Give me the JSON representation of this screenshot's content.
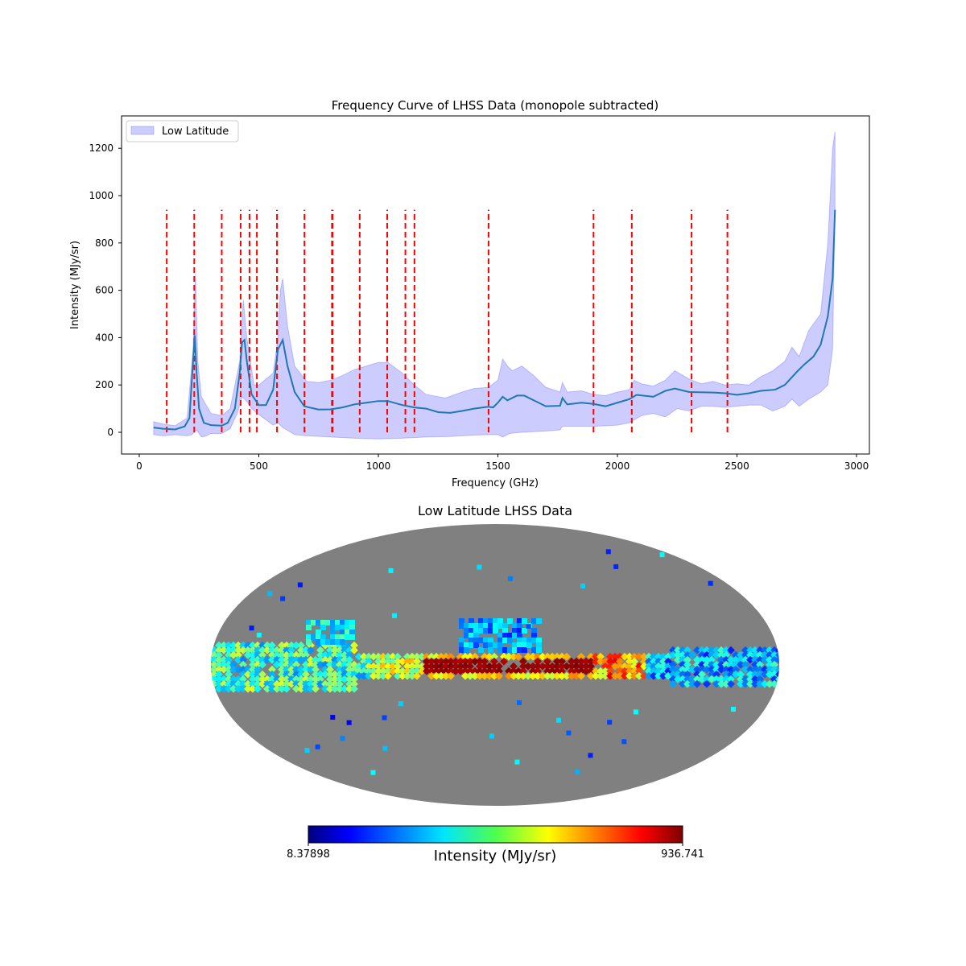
{
  "chart_data": [
    {
      "type": "line",
      "title": "Frequency Curve of LHSS Data (monopole subtracted)",
      "xlabel": "Frequency (GHz)",
      "ylabel": "Intensity (MJy/sr)",
      "xlim": [
        -80,
        3050
      ],
      "ylim": [
        -90,
        1330
      ],
      "xticks": [
        0,
        500,
        1000,
        1500,
        2000,
        2500,
        3000
      ],
      "yticks": [
        0,
        200,
        400,
        600,
        800,
        1000,
        1200
      ],
      "legend": {
        "placement": "top-left",
        "entries": [
          "Low Latitude"
        ]
      },
      "colors": {
        "mean": "#1f77b4",
        "band": "#0000ff",
        "lines": "#ff0000"
      },
      "series": [
        {
          "name": "mean",
          "x": [
            60,
            100,
            150,
            190,
            210,
            225,
            232,
            240,
            250,
            270,
            300,
            345,
            370,
            400,
            420,
            430,
            440,
            450,
            470,
            500,
            530,
            560,
            580,
            590,
            600,
            620,
            650,
            690,
            750,
            800,
            850,
            900,
            950,
            1000,
            1040,
            1100,
            1150,
            1200,
            1250,
            1300,
            1350,
            1400,
            1460,
            1480,
            1500,
            1520,
            1540,
            1580,
            1610,
            1660,
            1700,
            1760,
            1770,
            1790,
            1850,
            1900,
            1950,
            2000,
            2050,
            2080,
            2150,
            2200,
            2240,
            2300,
            2400,
            2450,
            2500,
            2550,
            2600,
            2660,
            2700,
            2750,
            2780,
            2820,
            2850,
            2880,
            2900,
            2910
          ],
          "y": [
            20,
            15,
            12,
            25,
            60,
            300,
            410,
            250,
            100,
            40,
            30,
            28,
            40,
            100,
            250,
            380,
            390,
            300,
            160,
            115,
            115,
            180,
            350,
            370,
            390,
            280,
            170,
            110,
            96,
            97,
            105,
            118,
            125,
            132,
            132,
            115,
            105,
            100,
            85,
            82,
            90,
            100,
            108,
            105,
            125,
            150,
            135,
            155,
            155,
            130,
            110,
            112,
            145,
            118,
            125,
            120,
            110,
            125,
            140,
            158,
            150,
            175,
            185,
            170,
            168,
            165,
            158,
            165,
            175,
            180,
            200,
            255,
            285,
            320,
            370,
            490,
            650,
            940
          ]
        },
        {
          "name": "Low Latitude (upper)",
          "x": [
            60,
            100,
            150,
            200,
            225,
            235,
            245,
            260,
            300,
            345,
            380,
            420,
            435,
            450,
            480,
            500,
            560,
            580,
            590,
            600,
            620,
            650,
            700,
            750,
            800,
            850,
            900,
            1000,
            1040,
            1100,
            1150,
            1200,
            1280,
            1350,
            1400,
            1460,
            1500,
            1520,
            1540,
            1560,
            1600,
            1650,
            1700,
            1760,
            1770,
            1790,
            1850,
            1900,
            1950,
            2000,
            2050,
            2070,
            2100,
            2150,
            2200,
            2240,
            2300,
            2350,
            2400,
            2450,
            2500,
            2550,
            2600,
            2650,
            2700,
            2730,
            2760,
            2800,
            2850,
            2880,
            2900,
            2910
          ],
          "y": [
            45,
            35,
            28,
            60,
            350,
            670,
            300,
            150,
            80,
            70,
            100,
            300,
            560,
            400,
            200,
            200,
            250,
            400,
            600,
            650,
            450,
            280,
            215,
            210,
            220,
            240,
            265,
            295,
            295,
            250,
            200,
            160,
            145,
            170,
            185,
            190,
            220,
            310,
            280,
            260,
            280,
            240,
            190,
            170,
            210,
            170,
            175,
            160,
            155,
            170,
            180,
            220,
            205,
            195,
            220,
            260,
            225,
            205,
            215,
            200,
            205,
            200,
            235,
            260,
            300,
            360,
            320,
            430,
            500,
            800,
            1200,
            1270
          ]
        },
        {
          "name": "Low Latitude (lower)",
          "x": [
            60,
            100,
            150,
            200,
            220,
            240,
            260,
            280,
            300,
            345,
            380,
            410,
            430,
            450,
            470,
            500,
            560,
            580,
            600,
            650,
            700,
            800,
            900,
            1000,
            1100,
            1200,
            1300,
            1400,
            1460,
            1500,
            1520,
            1550,
            1600,
            1700,
            1760,
            1770,
            1800,
            1900,
            2000,
            2050,
            2100,
            2150,
            2200,
            2250,
            2300,
            2350,
            2400,
            2450,
            2500,
            2550,
            2600,
            2650,
            2700,
            2730,
            2760,
            2800,
            2850,
            2880,
            2900,
            2910
          ],
          "y": [
            -10,
            -15,
            -10,
            -15,
            -10,
            10,
            -20,
            -15,
            -5,
            -5,
            15,
            80,
            150,
            130,
            100,
            75,
            30,
            40,
            20,
            -10,
            -15,
            -20,
            -25,
            -28,
            -25,
            -20,
            -18,
            -12,
            -10,
            -10,
            -20,
            -5,
            0,
            5,
            10,
            25,
            25,
            25,
            30,
            40,
            70,
            80,
            65,
            100,
            90,
            110,
            110,
            105,
            110,
            115,
            115,
            90,
            110,
            140,
            110,
            140,
            170,
            200,
            350,
            940
          ]
        }
      ],
      "vertical_lines": {
        "x": [
          115,
          230,
          345,
          424,
          461,
          492,
          576,
          691,
          806,
          809,
          922,
          1037,
          1113,
          1151,
          1461,
          1900,
          2060,
          2310,
          2460
        ],
        "ymin": 0,
        "ymax": 940
      }
    },
    {
      "type": "heatmap",
      "title": "Low Latitude LHSS Data",
      "projection": "mollweide",
      "colorbar": {
        "label": "Intensity (MJy/sr)",
        "min_label": "8.37898",
        "max_label": "936.741",
        "min": 8.37898,
        "max": 936.741,
        "colormap": "jet"
      },
      "mask_color": "#808080"
    }
  ]
}
